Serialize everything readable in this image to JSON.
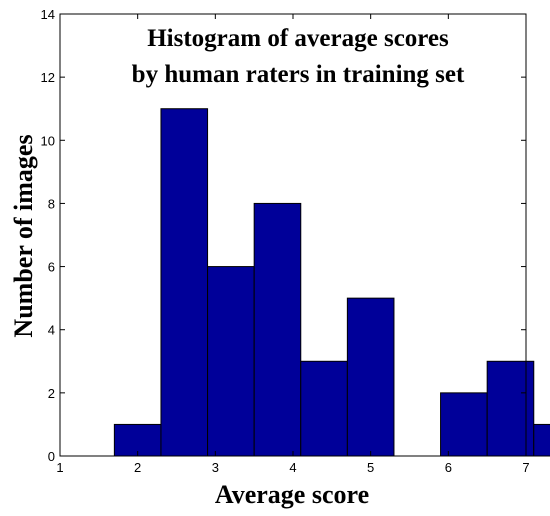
{
  "chart_data": {
    "type": "bar",
    "title_lines": [
      "Histogram of average scores",
      "by human raters in training set"
    ],
    "xlabel": "Average score",
    "ylabel": "Number of images",
    "xlim": [
      1,
      7
    ],
    "ylim": [
      0,
      14
    ],
    "x_ticks": [
      "1",
      "2",
      "3",
      "4",
      "5",
      "6",
      "7"
    ],
    "y_ticks": [
      "0",
      "2",
      "4",
      "6",
      "8",
      "10",
      "12",
      "14"
    ],
    "bin_width": 0.6,
    "bins": [
      {
        "center": 2.0,
        "value": 1
      },
      {
        "center": 2.6,
        "value": 11
      },
      {
        "center": 3.2,
        "value": 6
      },
      {
        "center": 3.8,
        "value": 8
      },
      {
        "center": 4.4,
        "value": 3
      },
      {
        "center": 5.0,
        "value": 5
      },
      {
        "center": 5.6,
        "value": 0
      },
      {
        "center": 6.2,
        "value": 2
      },
      {
        "center": 6.8,
        "value": 3
      },
      {
        "center": 7.4,
        "value": 1
      }
    ],
    "bar_color": "#000099",
    "bar_edge_color": "#000000",
    "grid": false
  }
}
